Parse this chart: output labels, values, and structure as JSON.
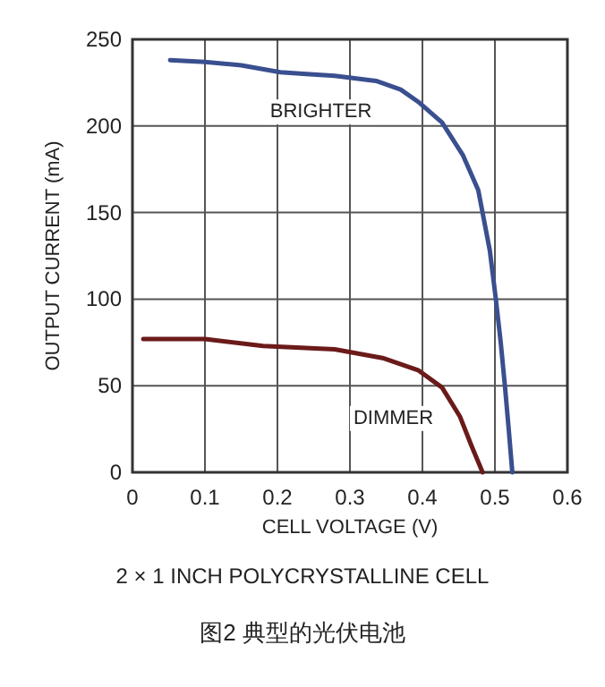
{
  "chart_data": {
    "type": "line",
    "xlabel": "CELL VOLTAGE (V)",
    "ylabel": "OUTPUT CURRENT (mA)",
    "xlim": [
      0,
      0.6
    ],
    "ylim": [
      0,
      250
    ],
    "xticks": [
      0,
      0.1,
      0.2,
      0.3,
      0.4,
      0.5,
      0.6
    ],
    "yticks": [
      0,
      50,
      100,
      150,
      200,
      250
    ],
    "grid": true,
    "marker": "none",
    "line_style": "solid",
    "annotations": [
      "2 × 1 INCH POLYCRYSTALLINE CELL",
      "图2 典型的光伏电池"
    ],
    "series": [
      {
        "name": "BRIGHTER",
        "color": "#3a4f8f",
        "x": [
          0.052,
          0.1,
          0.15,
          0.204,
          0.24,
          0.279,
          0.336,
          0.37,
          0.394,
          0.427,
          0.456,
          0.477,
          0.493,
          0.501,
          0.508,
          0.514,
          0.519,
          0.524
        ],
        "values": [
          238,
          237,
          235,
          231,
          230,
          229,
          226,
          221,
          214,
          202,
          183,
          163,
          128,
          101,
          75,
          49,
          25,
          0
        ]
      },
      {
        "name": "DIMMER",
        "color": "#6b1a1a",
        "x": [
          0.015,
          0.1,
          0.18,
          0.279,
          0.345,
          0.394,
          0.427,
          0.452,
          0.468,
          0.483
        ],
        "values": [
          77,
          77,
          73,
          71,
          66,
          59,
          49,
          32,
          15,
          0
        ]
      }
    ]
  }
}
